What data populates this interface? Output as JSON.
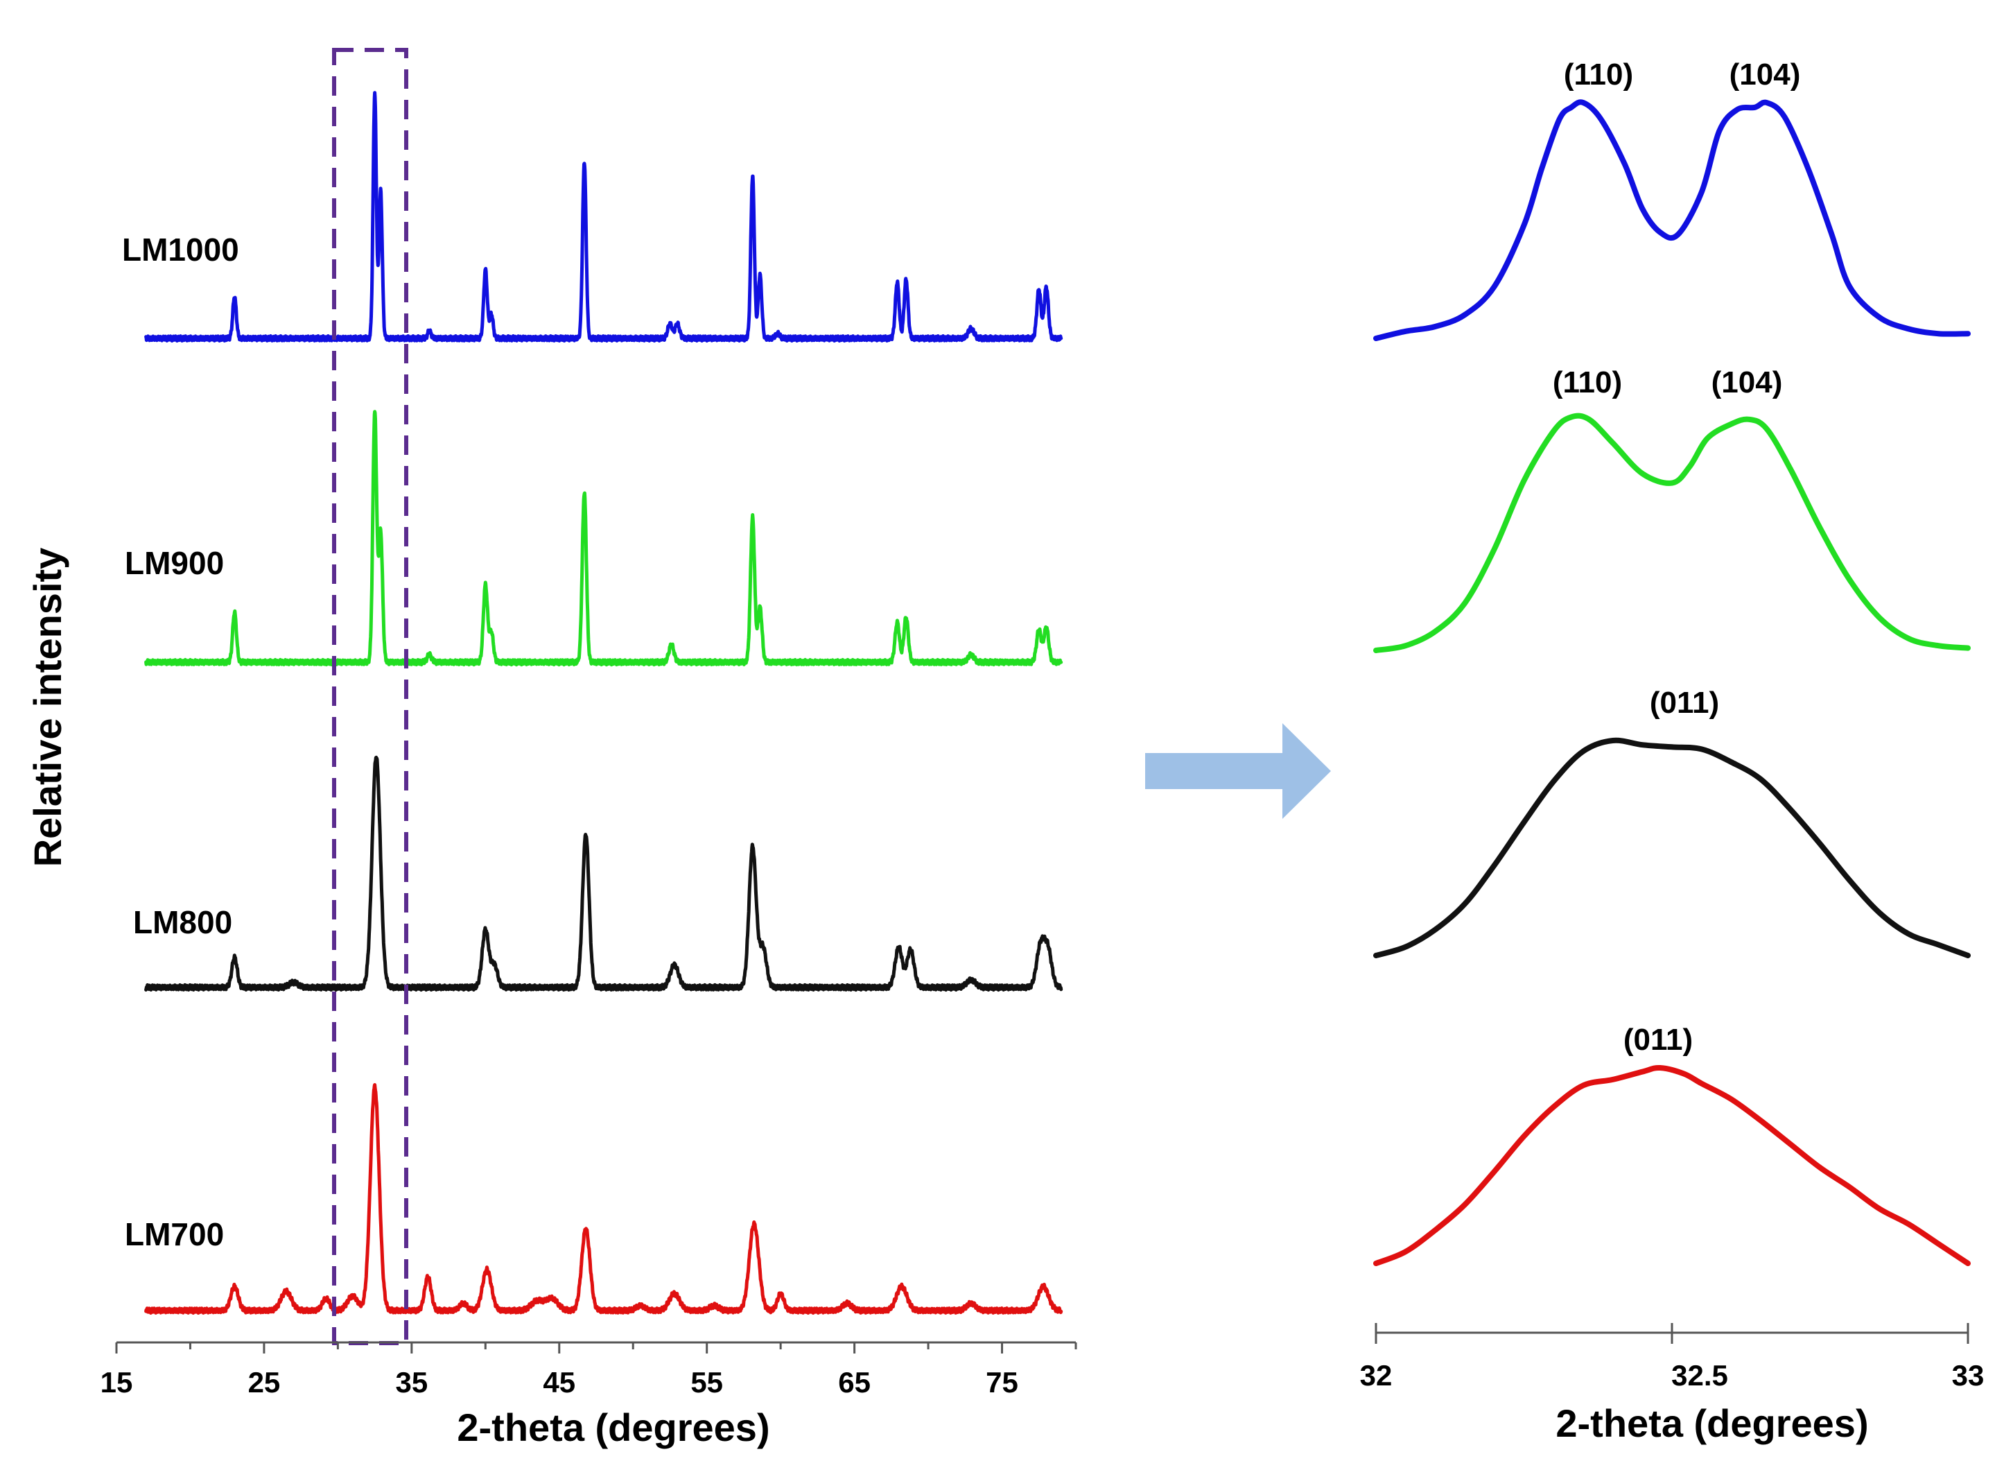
{
  "chart_data": [
    {
      "type": "line",
      "title": "",
      "xlabel": "2-theta (degrees)",
      "ylabel": "Relative intensity",
      "xlim": [
        15,
        80
      ],
      "x_ticks": [
        "15",
        "25",
        "35",
        "45",
        "55",
        "65",
        "75"
      ],
      "highlight_window": [
        30,
        34.5
      ],
      "series": [
        {
          "name": "LM1000",
          "color": "#1010e0",
          "peaks": [
            [
              23.0,
              0.17,
              0.12
            ],
            [
              32.5,
              1.0,
              0.11
            ],
            [
              32.9,
              0.6,
              0.11
            ],
            [
              36.2,
              0.03,
              0.12
            ],
            [
              40.0,
              0.28,
              0.12
            ],
            [
              40.4,
              0.1,
              0.12
            ],
            [
              46.7,
              0.72,
              0.12
            ],
            [
              52.5,
              0.06,
              0.15
            ],
            [
              53.0,
              0.06,
              0.15
            ],
            [
              58.1,
              0.66,
              0.12
            ],
            [
              58.6,
              0.26,
              0.12
            ],
            [
              59.8,
              0.02,
              0.15
            ],
            [
              67.9,
              0.23,
              0.13
            ],
            [
              68.5,
              0.24,
              0.13
            ],
            [
              72.9,
              0.04,
              0.2
            ],
            [
              77.5,
              0.2,
              0.14
            ],
            [
              78.0,
              0.21,
              0.14
            ]
          ]
        },
        {
          "name": "LM900",
          "color": "#22dd22",
          "peaks": [
            [
              23.0,
              0.2,
              0.13
            ],
            [
              32.5,
              1.0,
              0.13
            ],
            [
              32.9,
              0.52,
              0.13
            ],
            [
              36.2,
              0.03,
              0.15
            ],
            [
              40.0,
              0.31,
              0.14
            ],
            [
              40.4,
              0.12,
              0.14
            ],
            [
              46.7,
              0.68,
              0.14
            ],
            [
              52.6,
              0.07,
              0.17
            ],
            [
              58.1,
              0.58,
              0.14
            ],
            [
              58.6,
              0.22,
              0.14
            ],
            [
              67.9,
              0.16,
              0.15
            ],
            [
              68.5,
              0.18,
              0.15
            ],
            [
              72.9,
              0.03,
              0.2
            ],
            [
              77.5,
              0.13,
              0.16
            ],
            [
              78.0,
              0.14,
              0.16
            ]
          ]
        },
        {
          "name": "LM800",
          "color": "#111111",
          "peaks": [
            [
              23.0,
              0.12,
              0.18
            ],
            [
              27.0,
              0.02,
              0.3
            ],
            [
              32.6,
              0.92,
              0.28
            ],
            [
              40.0,
              0.23,
              0.22
            ],
            [
              40.6,
              0.09,
              0.22
            ],
            [
              46.8,
              0.61,
              0.22
            ],
            [
              52.8,
              0.09,
              0.28
            ],
            [
              58.1,
              0.56,
              0.24
            ],
            [
              58.8,
              0.16,
              0.24
            ],
            [
              68.0,
              0.16,
              0.24
            ],
            [
              68.8,
              0.15,
              0.24
            ],
            [
              72.9,
              0.03,
              0.3
            ],
            [
              77.6,
              0.16,
              0.26
            ],
            [
              78.1,
              0.15,
              0.26
            ]
          ]
        },
        {
          "name": "LM700",
          "color": "#e01010",
          "peaks": [
            [
              23.0,
              0.1,
              0.25
            ],
            [
              26.5,
              0.08,
              0.35
            ],
            [
              29.2,
              0.05,
              0.25
            ],
            [
              31.0,
              0.06,
              0.35
            ],
            [
              32.5,
              0.93,
              0.3
            ],
            [
              36.1,
              0.14,
              0.22
            ],
            [
              38.5,
              0.03,
              0.25
            ],
            [
              40.1,
              0.17,
              0.3
            ],
            [
              43.5,
              0.04,
              0.4
            ],
            [
              44.5,
              0.05,
              0.4
            ],
            [
              46.8,
              0.34,
              0.28
            ],
            [
              50.5,
              0.02,
              0.3
            ],
            [
              52.8,
              0.07,
              0.35
            ],
            [
              55.5,
              0.02,
              0.3
            ],
            [
              58.2,
              0.36,
              0.32
            ],
            [
              60.0,
              0.07,
              0.22
            ],
            [
              64.5,
              0.03,
              0.3
            ],
            [
              68.2,
              0.1,
              0.35
            ],
            [
              72.9,
              0.03,
              0.3
            ],
            [
              77.8,
              0.1,
              0.35
            ]
          ]
        }
      ]
    },
    {
      "type": "line",
      "title": "",
      "xlabel": "2-theta (degrees)",
      "ylabel": "",
      "xlim": [
        32,
        33
      ],
      "x_ticks": [
        "32",
        "32.5",
        "33"
      ],
      "series": [
        {
          "name": "LM1000",
          "color": "#1010e0",
          "annotations": [
            {
              "label": "(110)",
              "x": 32.35
            },
            {
              "label": "(104)",
              "x": 32.66
            }
          ],
          "x": [
            32.0,
            32.05,
            32.1,
            32.15,
            32.2,
            32.25,
            32.28,
            32.31,
            32.33,
            32.35,
            32.38,
            32.42,
            32.45,
            32.48,
            32.51,
            32.55,
            32.58,
            32.61,
            32.64,
            32.66,
            32.69,
            32.73,
            32.77,
            32.8,
            32.85,
            32.9,
            32.95,
            33.0
          ],
          "y": [
            0.0,
            0.03,
            0.05,
            0.1,
            0.22,
            0.48,
            0.72,
            0.93,
            0.98,
            1.0,
            0.93,
            0.74,
            0.55,
            0.45,
            0.44,
            0.62,
            0.88,
            0.97,
            0.98,
            1.0,
            0.94,
            0.72,
            0.44,
            0.22,
            0.09,
            0.04,
            0.02,
            0.02
          ]
        },
        {
          "name": "LM900",
          "color": "#22dd22",
          "annotations": [
            {
              "label": "(110)",
              "x": 32.34
            },
            {
              "label": "(104)",
              "x": 32.63
            }
          ],
          "x": [
            32.0,
            32.05,
            32.1,
            32.15,
            32.2,
            32.25,
            32.3,
            32.33,
            32.36,
            32.4,
            32.45,
            32.5,
            32.53,
            32.56,
            32.6,
            32.63,
            32.66,
            32.7,
            32.75,
            32.8,
            32.85,
            32.9,
            32.95,
            33.0
          ],
          "y": [
            0.0,
            0.02,
            0.08,
            0.2,
            0.43,
            0.72,
            0.93,
            0.99,
            0.98,
            0.88,
            0.75,
            0.71,
            0.78,
            0.9,
            0.96,
            0.98,
            0.94,
            0.77,
            0.52,
            0.3,
            0.14,
            0.05,
            0.02,
            0.01
          ]
        },
        {
          "name": "LM800",
          "color": "#111111",
          "annotations": [
            {
              "label": "(011)",
              "x": 32.5
            }
          ],
          "x": [
            32.0,
            32.05,
            32.1,
            32.15,
            32.2,
            32.25,
            32.3,
            32.35,
            32.4,
            32.45,
            32.5,
            32.55,
            32.6,
            32.65,
            32.7,
            32.75,
            32.8,
            32.85,
            32.9,
            32.95,
            33.0
          ],
          "y": [
            0.0,
            0.04,
            0.12,
            0.24,
            0.42,
            0.62,
            0.81,
            0.95,
            1.0,
            0.98,
            0.97,
            0.96,
            0.9,
            0.82,
            0.68,
            0.52,
            0.35,
            0.2,
            0.1,
            0.05,
            0.0
          ]
        },
        {
          "name": "LM700",
          "color": "#e01010",
          "annotations": [
            {
              "label": "(011)",
              "x": 32.48
            }
          ],
          "x": [
            32.0,
            32.05,
            32.1,
            32.15,
            32.2,
            32.25,
            32.3,
            32.35,
            32.4,
            32.45,
            32.48,
            32.52,
            32.55,
            32.6,
            32.65,
            32.7,
            32.75,
            32.8,
            32.85,
            32.9,
            32.95,
            33.0
          ],
          "y": [
            0.0,
            0.06,
            0.17,
            0.3,
            0.47,
            0.65,
            0.8,
            0.91,
            0.94,
            0.98,
            1.0,
            0.97,
            0.92,
            0.84,
            0.73,
            0.61,
            0.49,
            0.39,
            0.28,
            0.2,
            0.1,
            0.0
          ]
        }
      ]
    }
  ]
}
